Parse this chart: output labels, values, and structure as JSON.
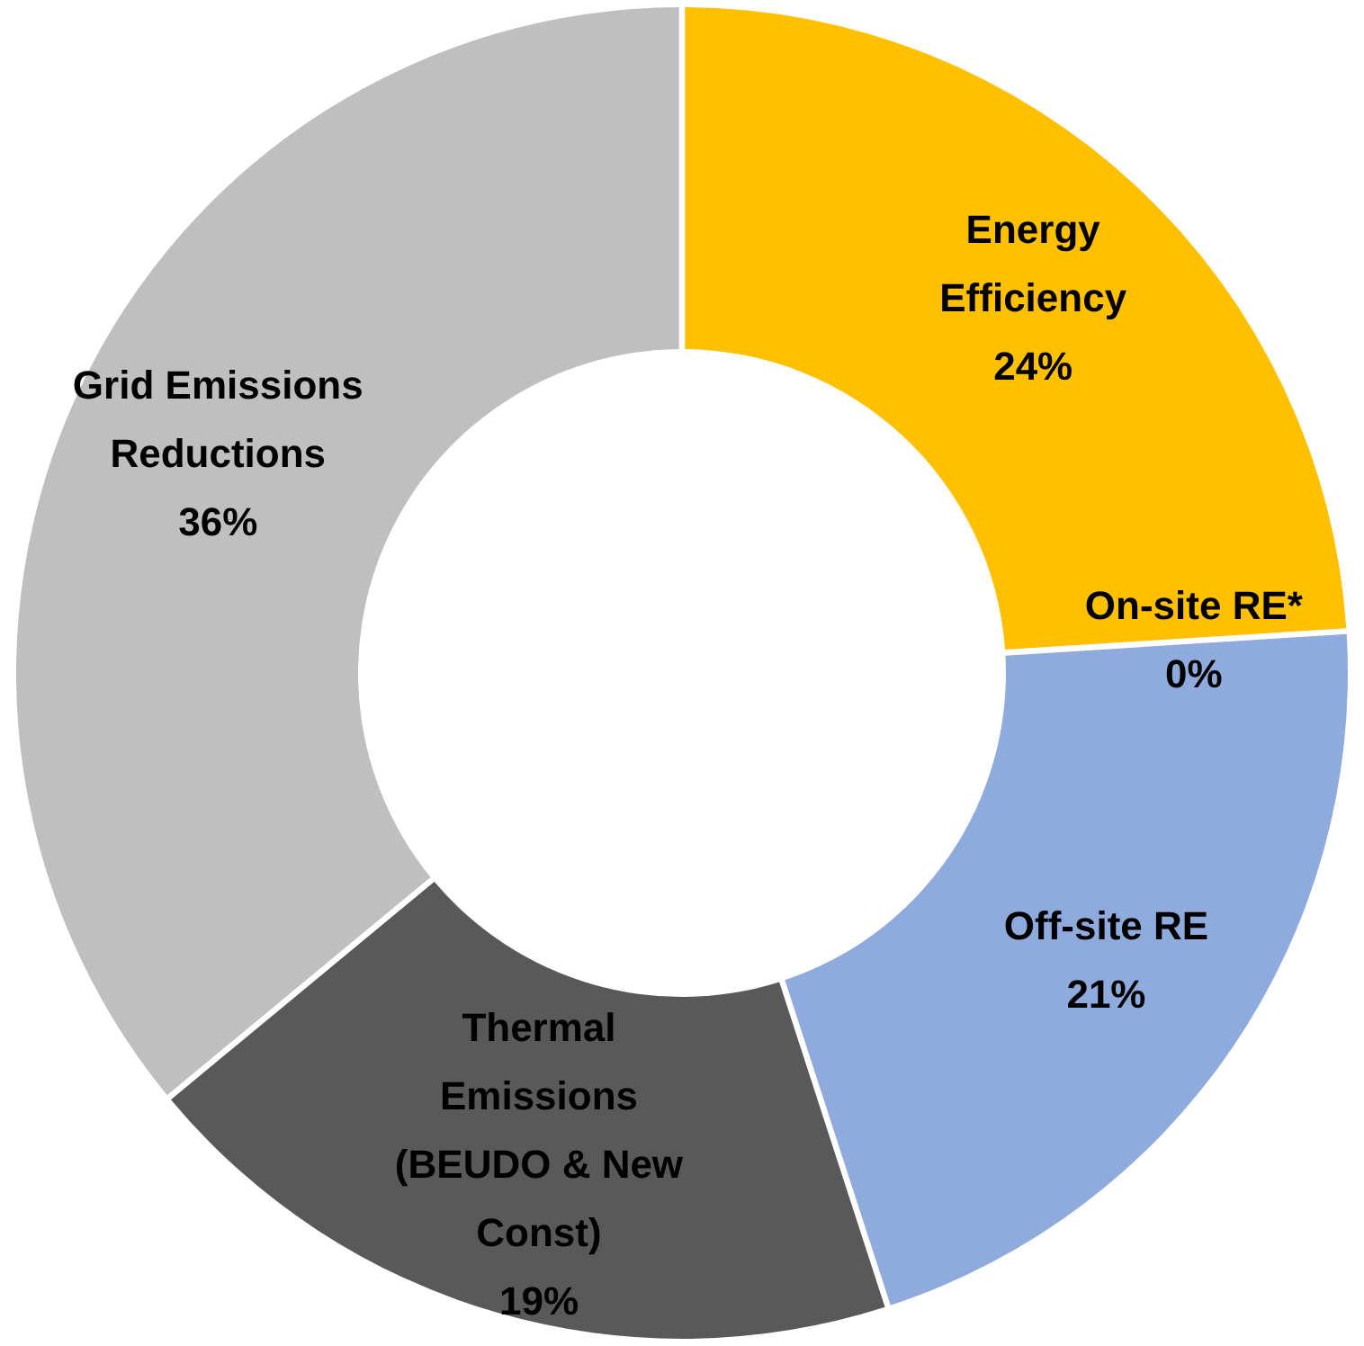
{
  "chart_data": {
    "type": "donut",
    "categories": [
      "Energy Efficiency",
      "On-site RE*",
      "Off-site RE",
      "Thermal Emissions (BEUDO & New Const)",
      "Grid Emissions Reductions"
    ],
    "values": [
      24,
      0,
      21,
      19,
      36
    ],
    "value_labels": [
      "24%",
      "0%",
      "21%",
      "19%",
      "36%"
    ],
    "colors": [
      "#ffc000",
      "#70ad47",
      "#8faadc",
      "#595959",
      "#bfbfbf"
    ]
  }
}
